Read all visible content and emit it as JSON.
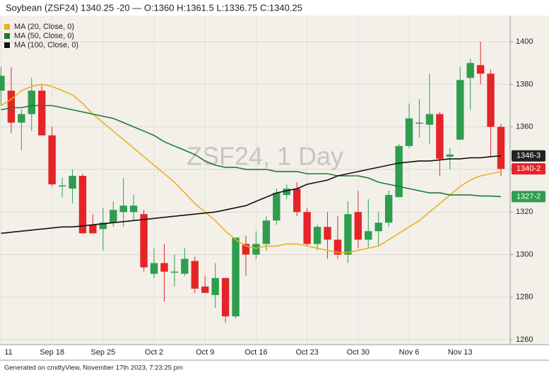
{
  "chart_data": {
    "type": "candlestick",
    "title": "Soybean (ZSF24) 1340.25 -20 — O:1360 H:1361.5 L:1336.75 C:1340.25",
    "watermark": "ZSF24, 1 Day",
    "footer": "Generated on cmdtyView, November 17th 2023, 7:23:25 pm",
    "categories": [
      "11",
      null,
      null,
      null,
      null,
      "Sep 18",
      null,
      null,
      null,
      null,
      "Sep 25",
      null,
      null,
      null,
      null,
      "Oct 2",
      null,
      null,
      null,
      null,
      "Oct 9",
      null,
      null,
      null,
      null,
      "Oct 16",
      null,
      null,
      null,
      null,
      "Oct 23",
      null,
      null,
      null,
      null,
      "Oct 30",
      null,
      null,
      null,
      null,
      "Nov 6",
      null,
      null,
      null,
      null,
      "Nov 13",
      null,
      null,
      null,
      null
    ],
    "ohlc": {
      "up_color": "#2e9d4e",
      "down_color": "#e52428",
      "open": [
        1377,
        1377,
        1362,
        1366,
        1377,
        1356,
        1332,
        1331,
        1337,
        1314,
        1312,
        1315,
        1320,
        1320,
        1319,
        1291,
        1296,
        1292,
        1291,
        1297,
        1285,
        1281,
        1289,
        1271,
        1305,
        1300,
        1305,
        1316,
        1328,
        1331,
        1320,
        1305,
        1313,
        1307,
        1300,
        1320,
        1307,
        1311,
        1315,
        1327,
        1351,
        1362,
        1361,
        1366,
        1346,
        1354,
        1383,
        1389,
        1385,
        1360
      ],
      "high": [
        1388,
        1388,
        1368,
        1383,
        1380,
        1360,
        1336,
        1340,
        1338,
        1319,
        1322,
        1325,
        1336,
        1328,
        1321,
        1303,
        1305,
        1300,
        1303,
        1299,
        1290,
        1296,
        1289,
        1308,
        1309,
        1311,
        1318,
        1331,
        1333,
        1334,
        1322,
        1314,
        1320,
        1318,
        1325,
        1330,
        1326,
        1320,
        1330,
        1352,
        1371,
        1373,
        1385,
        1367,
        1350,
        1388,
        1392,
        1400,
        1387,
        1361.5
      ],
      "low": [
        1370,
        1357,
        1349,
        1358,
        1356,
        1332,
        1327,
        1324,
        1310,
        1310,
        1302,
        1313,
        1313,
        1316,
        1292,
        1289,
        1278,
        1285,
        1290,
        1282,
        1282,
        1275,
        1268,
        1270,
        1290,
        1298,
        1302,
        1314,
        1326,
        1318,
        1304,
        1302,
        1298,
        1298,
        1296,
        1303,
        1303,
        1304,
        1313,
        1327,
        1350,
        1355,
        1352,
        1337,
        1340,
        1354,
        1368,
        1380,
        1346,
        1336.75
      ],
      "close": [
        1384,
        1362,
        1366,
        1377,
        1356,
        1333,
        1332.5,
        1337,
        1310,
        1310,
        1315,
        1321,
        1323,
        1323,
        1294,
        1296,
        1292,
        1292,
        1298,
        1284,
        1282,
        1289,
        1271,
        1308,
        1300,
        1305,
        1316,
        1329,
        1331,
        1320,
        1305,
        1313,
        1307,
        1300,
        1319,
        1307,
        1311,
        1315,
        1328,
        1351,
        1364,
        1362,
        1366,
        1345,
        1347,
        1382,
        1390,
        1385,
        1360,
        1340.25
      ],
      "last_label": "1340-2"
    },
    "series": [
      {
        "name": "MA (20, Close, 0)",
        "color": "#e8b21e",
        "values": [
          1370,
          1373,
          1377,
          1379,
          1380,
          1379,
          1377,
          1375,
          1371,
          1366,
          1362,
          1358,
          1354,
          1350,
          1346,
          1342,
          1338,
          1334,
          1329,
          1324,
          1320,
          1316,
          1311,
          1307,
          1304,
          1303,
          1304,
          1304,
          1305,
          1305,
          1304,
          1303,
          1302,
          1301,
          1301,
          1302,
          1303,
          1304,
          1307,
          1310,
          1313,
          1316,
          1320,
          1324,
          1328,
          1332,
          1335,
          1337,
          1338,
          1339
        ]
      },
      {
        "name": "MA (50, Close, 0)",
        "color": "#1e7a2e",
        "values": [
          1368,
          1369,
          1369,
          1370,
          1370,
          1370,
          1369,
          1368,
          1367,
          1366,
          1365,
          1364,
          1362,
          1360,
          1358,
          1356,
          1353,
          1351,
          1349,
          1347,
          1344,
          1342,
          1341,
          1341,
          1340,
          1340,
          1340,
          1339,
          1339,
          1339,
          1338,
          1338,
          1338,
          1337,
          1337,
          1337,
          1336,
          1334,
          1333,
          1332,
          1331,
          1330,
          1329,
          1329,
          1328,
          1328,
          1328,
          1327.5,
          1327.5,
          1327.25
        ],
        "last_label": "1327-2",
        "label_color": "#2e9d4e"
      },
      {
        "name": "MA (100, Close, 0)",
        "color": "#111111",
        "values": [
          1310,
          1310.5,
          1311,
          1311.5,
          1312,
          1312.5,
          1313,
          1313,
          1313.5,
          1314,
          1314.5,
          1315,
          1315.5,
          1316,
          1316.5,
          1317,
          1317.5,
          1318,
          1318.5,
          1319,
          1319.5,
          1320,
          1321,
          1322,
          1323,
          1325,
          1327,
          1329,
          1330,
          1331,
          1333,
          1334,
          1335,
          1337,
          1338,
          1339,
          1340,
          1341,
          1342,
          1343,
          1343.5,
          1344,
          1344,
          1344.5,
          1345,
          1345,
          1345.5,
          1345.5,
          1346,
          1346.375
        ],
        "last_label": "1346-3",
        "label_color": "#222222"
      }
    ],
    "ylim": [
      1257.7,
      1412.3
    ],
    "yticks": [
      1260,
      1280,
      1300,
      1320,
      1340,
      1360,
      1380,
      1400
    ],
    "grid": true,
    "legend": "top-left"
  }
}
